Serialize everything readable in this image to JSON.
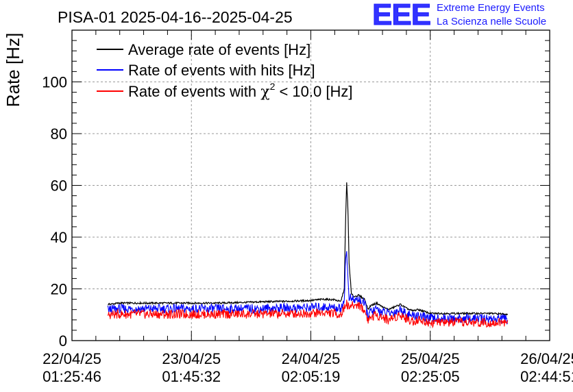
{
  "header": {
    "title": "PISA-01 2025-04-16--2025-04-25"
  },
  "logo": {
    "mark": "EEE",
    "line1": "Extreme Energy Events",
    "line2": "La Scienza nelle Scuole"
  },
  "colors": {
    "average": "#000000",
    "hits": "#0000ff",
    "chi2": "#ff0000",
    "grid": "#999999",
    "brand": "#1a1aff"
  },
  "chart_data": {
    "type": "line",
    "title": "PISA-01 2025-04-16--2025-04-25",
    "xlabel": "",
    "ylabel": "Rate [Hz]",
    "xlim": [
      0,
      4
    ],
    "ylim": [
      0,
      120
    ],
    "yticks": [
      0,
      20,
      40,
      60,
      80,
      100
    ],
    "ytick_labels": [
      "0",
      "20",
      "40",
      "60",
      "80",
      "100"
    ],
    "xtick_labels": [
      {
        "date": "22/04/25",
        "time": "01:25:46"
      },
      {
        "date": "23/04/25",
        "time": "01:45:32"
      },
      {
        "date": "24/04/25",
        "time": "02:05:19"
      },
      {
        "date": "25/04/25",
        "time": "02:25:05"
      },
      {
        "date": "26/04/25",
        "time": "02:44:51"
      }
    ],
    "grid": true,
    "legend_position": "top-left",
    "series": [
      {
        "name": "Average rate of events [Hz]",
        "color": "#000000",
        "x": [
          0.3,
          0.4,
          0.6,
          0.8,
          1.0,
          1.2,
          1.4,
          1.6,
          1.8,
          2.0,
          2.1,
          2.2,
          2.25,
          2.28,
          2.29,
          2.3,
          2.31,
          2.32,
          2.34,
          2.36,
          2.4,
          2.45,
          2.48,
          2.5,
          2.55,
          2.6,
          2.65,
          2.7,
          2.75,
          2.8,
          2.85,
          2.9,
          3.0,
          3.1,
          3.3,
          3.5,
          3.65
        ],
        "y": [
          14,
          14.5,
          14.5,
          14.5,
          14.5,
          14.5,
          14.7,
          15,
          15.2,
          15.5,
          16,
          15.8,
          15,
          20,
          45,
          61,
          52,
          30,
          18,
          17,
          17.5,
          16,
          12,
          13.5,
          14.5,
          13,
          12,
          13,
          14,
          12.5,
          11.5,
          12,
          10.5,
          10.5,
          10.5,
          10.5,
          10.2
        ]
      },
      {
        "name": "Rate of events with hits [Hz]",
        "color": "#0000ff",
        "x": [
          0.3,
          0.4,
          0.6,
          0.8,
          1.0,
          1.2,
          1.4,
          1.6,
          1.8,
          2.0,
          2.1,
          2.2,
          2.25,
          2.28,
          2.29,
          2.3,
          2.31,
          2.32,
          2.34,
          2.36,
          2.4,
          2.45,
          2.48,
          2.5,
          2.55,
          2.6,
          2.65,
          2.7,
          2.75,
          2.8,
          2.85,
          2.9,
          3.0,
          3.1,
          3.3,
          3.5,
          3.65
        ],
        "y": [
          12,
          12.3,
          12.3,
          12.3,
          12.3,
          12.3,
          12.3,
          12.4,
          12.6,
          12.8,
          13,
          12.8,
          12.3,
          16,
          30,
          35,
          24,
          17,
          16,
          15.5,
          16,
          14,
          10,
          11,
          12,
          11,
          10.5,
          11,
          12,
          10.5,
          9.5,
          9.8,
          8.5,
          8.5,
          8.5,
          8.5,
          8.3
        ]
      },
      {
        "name": "Rate of events with χ² < 10.0 [Hz]",
        "color": "#ff0000",
        "x": [
          0.3,
          0.4,
          0.6,
          0.8,
          1.0,
          1.2,
          1.4,
          1.6,
          1.8,
          2.0,
          2.1,
          2.2,
          2.25,
          2.28,
          2.29,
          2.3,
          2.31,
          2.32,
          2.34,
          2.36,
          2.4,
          2.45,
          2.48,
          2.5,
          2.55,
          2.6,
          2.65,
          2.7,
          2.75,
          2.8,
          2.85,
          2.9,
          3.0,
          3.1,
          3.3,
          3.5,
          3.65
        ],
        "y": [
          10,
          10.2,
          10.2,
          10.2,
          10.2,
          10.2,
          10.2,
          10.3,
          10.4,
          10.6,
          10.8,
          10.5,
          10,
          12.5,
          14,
          15,
          13,
          13,
          13.5,
          13.5,
          14,
          11.5,
          8,
          9,
          10,
          9,
          8,
          9,
          10,
          8.5,
          7.5,
          8,
          7,
          7,
          7,
          7,
          7
        ]
      }
    ],
    "legend": [
      {
        "text": "Average rate of events [Hz]",
        "color": "#000000"
      },
      {
        "text": "Rate of events with hits [Hz]",
        "color": "#0000ff"
      },
      {
        "pre": "Rate of events with ",
        "symbol": "χ",
        "sup": "2",
        "post": " < 10.0 [Hz]",
        "color": "#ff0000"
      }
    ]
  }
}
